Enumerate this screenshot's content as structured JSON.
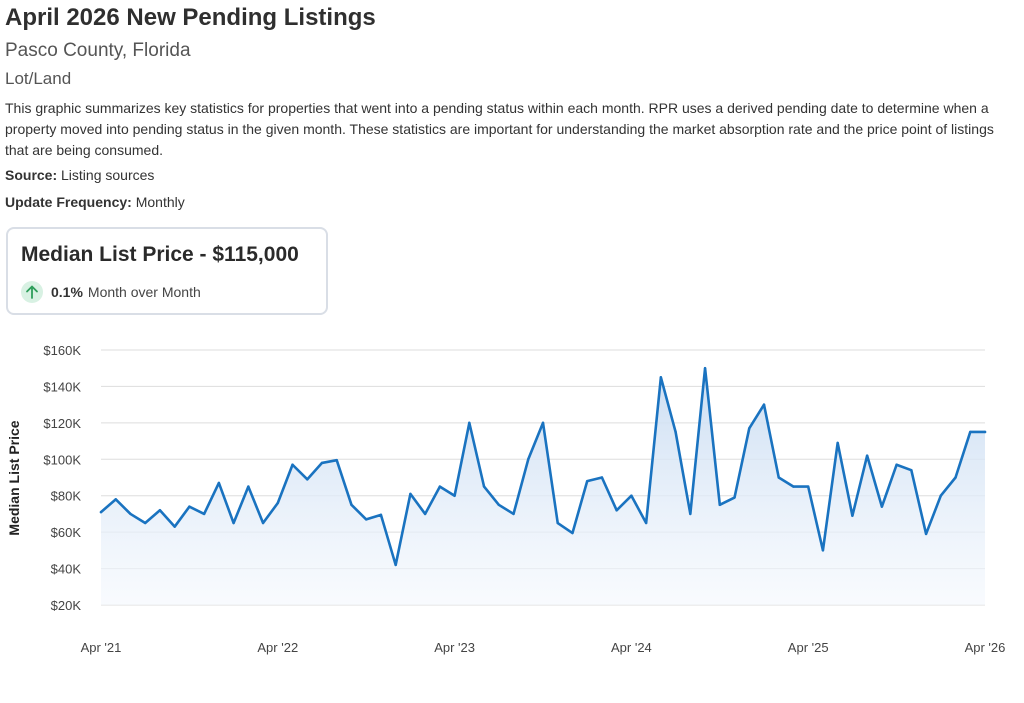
{
  "header": {
    "title": "April 2026 New Pending Listings",
    "subtitle": "Pasco County, Florida",
    "category": "Lot/Land",
    "description": "This graphic summarizes key statistics for properties that went into a pending status within each month. RPR uses a derived pending date to determine when a property moved into pending status in the given month. These statistics are important for understanding the market absorption rate and the price point of listings that are being consumed.",
    "source_label": "Source:",
    "source_value": "Listing sources",
    "frequency_label": "Update Frequency:",
    "frequency_value": "Monthly"
  },
  "card": {
    "title": "Median List Price - $115,000",
    "change_pct": "0.1%",
    "change_text": "Month over Month",
    "icon": "arrow-up-icon"
  },
  "colors": {
    "line": "#1a73c0",
    "fill_top": "#c9dcf2",
    "fill_bottom": "#f4f8fd",
    "grid": "#dddddd",
    "up_badge": "#d8f1e3",
    "up_arrow": "#2e9e5b"
  },
  "chart_data": {
    "type": "area",
    "ylabel": "Median List Price",
    "xlabel": "",
    "ylim": [
      20000,
      160000
    ],
    "y_ticks": [
      20000,
      40000,
      60000,
      80000,
      100000,
      120000,
      140000,
      160000
    ],
    "y_tick_labels": [
      "$20K",
      "$40K",
      "$60K",
      "$80K",
      "$100K",
      "$120K",
      "$140K",
      "$160K"
    ],
    "x_tick_labels": [
      "Apr '21",
      "Apr '22",
      "Apr '23",
      "Apr '24",
      "Apr '25",
      "Apr '26"
    ],
    "grid": true,
    "series": [
      {
        "values": [
          71000,
          78000,
          70000,
          65000,
          72000,
          63000,
          74000,
          70000,
          87000,
          65000,
          85000,
          65000,
          76000,
          97000,
          89000,
          98000,
          99500,
          75000,
          67000,
          69500,
          42000,
          81000,
          70000,
          85000,
          80000,
          120000,
          85000,
          75000,
          70000,
          100000,
          120000,
          65000,
          59500,
          88000,
          90000,
          72000,
          80000,
          65000,
          145000,
          115000,
          70000,
          150000,
          75000,
          79000,
          117000,
          130000,
          90000,
          85000,
          85000,
          50000,
          109000,
          69000,
          102000,
          74000,
          97000,
          94000,
          59000,
          80000,
          90000,
          115000,
          115000
        ]
      }
    ]
  }
}
